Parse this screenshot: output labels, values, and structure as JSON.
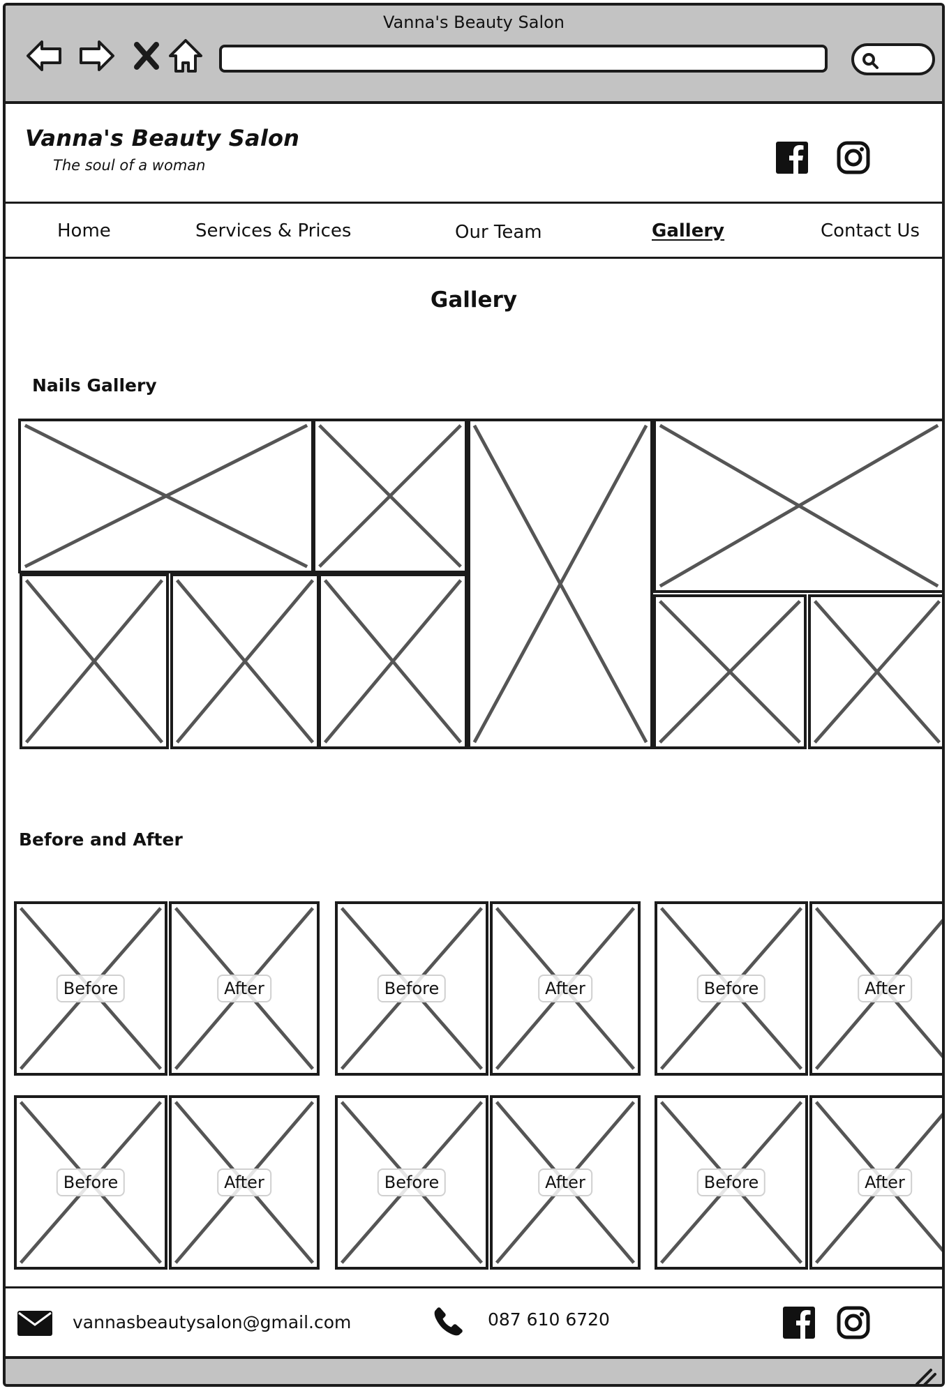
{
  "browser": {
    "window_title": "Vanna's Beauty Salon",
    "back_icon": "arrow-left-icon",
    "forward_icon": "arrow-right-icon",
    "stop_icon": "close-icon",
    "home_icon": "home-icon",
    "address": "",
    "search_icon": "search-icon"
  },
  "header": {
    "site_title": "Vanna's Beauty Salon",
    "tagline": "The soul of a woman",
    "social": [
      "facebook-icon",
      "instagram-icon"
    ]
  },
  "nav": {
    "items": [
      {
        "label": "Home"
      },
      {
        "label": "Services & Prices"
      },
      {
        "label": "Our Team"
      },
      {
        "label": "Gallery",
        "active": true
      },
      {
        "label": "Contact Us"
      }
    ]
  },
  "main": {
    "page_title": "Gallery",
    "nails_heading": "Nails Gallery",
    "before_after_heading": "Before and After",
    "before_label": "Before",
    "after_label": "After"
  },
  "footer": {
    "email": "vannasbeautysalon@gmail.com",
    "phone": "087 610 6720",
    "icons": [
      "email-icon",
      "phone-icon",
      "facebook-icon",
      "instagram-icon"
    ]
  }
}
